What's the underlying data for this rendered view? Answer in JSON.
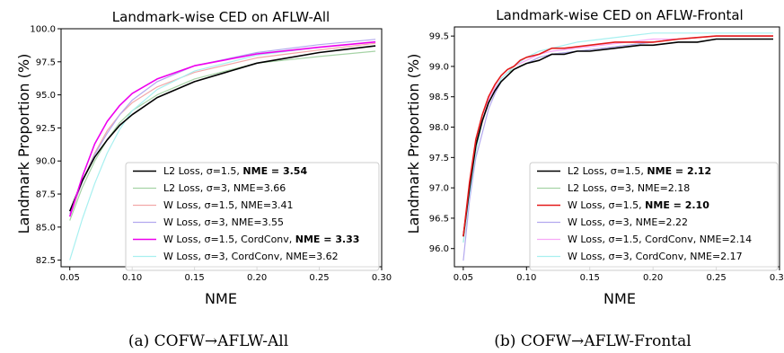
{
  "chart_data": [
    {
      "type": "line",
      "title": "Landmark-wise CED on AFLW-All",
      "xlabel": "NME",
      "ylabel": "Landmark Proportion (%)",
      "xlim": [
        0.043,
        0.3
      ],
      "ylim": [
        82,
        100
      ],
      "xticks": [
        "0.05",
        "0.10",
        "0.15",
        "0.20",
        "0.25",
        "0.30"
      ],
      "yticks": [
        "82.5",
        "85.0",
        "87.5",
        "90.0",
        "92.5",
        "95.0",
        "97.5",
        "100.0"
      ],
      "caption": "(a) COFW→AFLW-All",
      "legend_position": "lower-right",
      "series": [
        {
          "name": "L2 Loss, σ=1.5, NME = 3.54",
          "label_plain": "L2 Loss, σ=1.5, ",
          "label_bold": "NME = 3.54",
          "color": "#000000",
          "width": 1.6,
          "x": [
            0.05,
            0.06,
            0.07,
            0.08,
            0.09,
            0.1,
            0.12,
            0.15,
            0.2,
            0.25,
            0.295
          ],
          "y": [
            86.2,
            88.5,
            90.3,
            91.6,
            92.7,
            93.5,
            94.8,
            96.0,
            97.4,
            98.2,
            98.7
          ]
        },
        {
          "name": "L2 Loss, σ=3, NME=3.66",
          "label_plain": "L2 Loss, σ=3, NME=3.66",
          "label_bold": "",
          "color": "#a6d3a6",
          "width": 1.2,
          "x": [
            0.05,
            0.06,
            0.07,
            0.08,
            0.09,
            0.1,
            0.12,
            0.15,
            0.2,
            0.25,
            0.295
          ],
          "y": [
            85.5,
            88.0,
            90.0,
            91.6,
            92.9,
            93.8,
            95.0,
            96.2,
            97.4,
            97.9,
            98.3
          ]
        },
        {
          "name": "W Loss, σ=1.5, NME=3.41",
          "label_plain": "W Loss, σ=1.5, NME=3.41",
          "label_bold": "",
          "color": "#f2a8a8",
          "width": 1.2,
          "x": [
            0.05,
            0.06,
            0.07,
            0.08,
            0.09,
            0.1,
            0.12,
            0.15,
            0.2,
            0.25,
            0.295
          ],
          "y": [
            85.8,
            88.4,
            90.6,
            92.3,
            93.5,
            94.4,
            95.6,
            96.7,
            97.8,
            98.4,
            98.9
          ]
        },
        {
          "name": "W Loss, σ=3, NME=3.55",
          "label_plain": "W Loss, σ=3, NME=3.55",
          "label_bold": "",
          "color": "#b3a8ee",
          "width": 1.2,
          "x": [
            0.05,
            0.06,
            0.07,
            0.08,
            0.09,
            0.1,
            0.12,
            0.15,
            0.2,
            0.25,
            0.295
          ],
          "y": [
            86.0,
            88.4,
            90.5,
            92.1,
            93.5,
            94.6,
            96.0,
            97.2,
            98.2,
            98.8,
            99.2
          ]
        },
        {
          "name": "W Loss, σ=1.5, CordConv, NME = 3.33",
          "label_plain": "W Loss, σ=1.5, CordConv, ",
          "label_bold": "NME = 3.33",
          "color": "#ee00ee",
          "width": 1.6,
          "x": [
            0.05,
            0.06,
            0.07,
            0.08,
            0.09,
            0.1,
            0.12,
            0.15,
            0.2,
            0.25,
            0.295
          ],
          "y": [
            85.8,
            88.8,
            91.3,
            93.0,
            94.2,
            95.1,
            96.2,
            97.2,
            98.1,
            98.6,
            99.0
          ]
        },
        {
          "name": "W Loss, σ=3, CordConv, NME=3.62",
          "label_plain": "W Loss, σ=3, CordConv, NME=3.62",
          "label_bold": "",
          "color": "#a8f0f0",
          "width": 1.2,
          "x": [
            0.05,
            0.06,
            0.07,
            0.08,
            0.09,
            0.1,
            0.12,
            0.15,
            0.2,
            0.25,
            0.295
          ],
          "y": [
            82.5,
            85.6,
            88.3,
            90.6,
            92.4,
            93.8,
            95.4,
            96.8,
            98.0,
            98.6,
            99.0
          ]
        }
      ]
    },
    {
      "type": "line",
      "title": "Landmark-wise CED on AFLW-Frontal",
      "xlabel": "NME",
      "ylabel": "Landmark Proportion (%)",
      "xlim": [
        0.043,
        0.3
      ],
      "ylim": [
        95.7,
        99.65
      ],
      "xticks": [
        "0.05",
        "0.10",
        "0.15",
        "0.20",
        "0.25",
        "0.30"
      ],
      "yticks": [
        "96.0",
        "96.5",
        "97.0",
        "97.5",
        "98.0",
        "98.5",
        "99.0",
        "99.5"
      ],
      "caption": "(b) COFW→AFLW-Frontal",
      "legend_position": "lower-right",
      "series": [
        {
          "name": "L2 Loss, σ=1.5, NME = 2.12",
          "label_plain": "L2 Loss, σ=1.5, ",
          "label_bold": "NME = 2.12",
          "color": "#000000",
          "width": 1.6,
          "x": [
            0.05,
            0.055,
            0.06,
            0.065,
            0.07,
            0.075,
            0.08,
            0.085,
            0.09,
            0.095,
            0.1,
            0.11,
            0.115,
            0.12,
            0.13,
            0.14,
            0.15,
            0.17,
            0.19,
            0.2,
            0.22,
            0.235,
            0.25,
            0.26,
            0.295
          ],
          "y": [
            96.2,
            97.0,
            97.7,
            98.1,
            98.4,
            98.6,
            98.75,
            98.85,
            98.95,
            99.0,
            99.05,
            99.1,
            99.15,
            99.2,
            99.2,
            99.25,
            99.25,
            99.3,
            99.35,
            99.35,
            99.4,
            99.4,
            99.45,
            99.45,
            99.45
          ]
        },
        {
          "name": "L2 Loss, σ=3, NME=2.18",
          "label_plain": "L2 Loss, σ=3, NME=2.18",
          "label_bold": "",
          "color": "#a6d3a6",
          "width": 1.2,
          "x": [
            0.05,
            0.055,
            0.06,
            0.065,
            0.07,
            0.075,
            0.08,
            0.085,
            0.09,
            0.1,
            0.11,
            0.12,
            0.14,
            0.16,
            0.18,
            0.2,
            0.22,
            0.25,
            0.295
          ],
          "y": [
            96.1,
            96.9,
            97.6,
            98.1,
            98.4,
            98.6,
            98.8,
            98.9,
            98.95,
            99.05,
            99.15,
            99.2,
            99.25,
            99.3,
            99.35,
            99.4,
            99.45,
            99.5,
            99.5
          ]
        },
        {
          "name": "W Loss, σ=1.5, NME = 2.10",
          "label_plain": "W Loss, σ=1.5, ",
          "label_bold": "NME = 2.10",
          "color": "#e41a1a",
          "width": 1.6,
          "x": [
            0.05,
            0.055,
            0.06,
            0.065,
            0.07,
            0.075,
            0.08,
            0.085,
            0.09,
            0.095,
            0.1,
            0.11,
            0.12,
            0.13,
            0.15,
            0.17,
            0.2,
            0.22,
            0.25,
            0.295
          ],
          "y": [
            96.2,
            97.1,
            97.8,
            98.2,
            98.5,
            98.7,
            98.85,
            98.95,
            99.0,
            99.1,
            99.15,
            99.2,
            99.3,
            99.3,
            99.35,
            99.4,
            99.4,
            99.45,
            99.5,
            99.5
          ]
        },
        {
          "name": "W Loss, σ=3, NME=2.22",
          "label_plain": "W Loss, σ=3, NME=2.22",
          "label_bold": "",
          "color": "#b3a8ee",
          "width": 1.2,
          "x": [
            0.05,
            0.055,
            0.06,
            0.065,
            0.07,
            0.075,
            0.08,
            0.085,
            0.09,
            0.1,
            0.11,
            0.12,
            0.14,
            0.16,
            0.18,
            0.2,
            0.22,
            0.25,
            0.295
          ],
          "y": [
            95.8,
            96.8,
            97.5,
            97.9,
            98.3,
            98.55,
            98.75,
            98.85,
            98.95,
            99.05,
            99.15,
            99.2,
            99.25,
            99.3,
            99.35,
            99.4,
            99.45,
            99.5,
            99.5
          ]
        },
        {
          "name": "W Loss, σ=1.5, CordConv, NME=2.14",
          "label_plain": "W Loss, σ=1.5, CordConv, NME=2.14",
          "label_bold": "",
          "color": "#f7a8f7",
          "width": 1.2,
          "x": [
            0.05,
            0.055,
            0.06,
            0.065,
            0.07,
            0.075,
            0.08,
            0.085,
            0.09,
            0.1,
            0.11,
            0.12,
            0.14,
            0.16,
            0.18,
            0.2,
            0.22,
            0.25,
            0.295
          ],
          "y": [
            96.2,
            97.0,
            97.7,
            98.1,
            98.45,
            98.65,
            98.8,
            98.9,
            99.0,
            99.1,
            99.2,
            99.25,
            99.3,
            99.35,
            99.4,
            99.45,
            99.45,
            99.5,
            99.5
          ]
        },
        {
          "name": "W Loss, σ=3, CordConv, NME=2.17",
          "label_plain": "W Loss, σ=3, CordConv, NME=2.17",
          "label_bold": "",
          "color": "#a8f0f0",
          "width": 1.2,
          "x": [
            0.05,
            0.055,
            0.06,
            0.065,
            0.07,
            0.075,
            0.08,
            0.085,
            0.09,
            0.1,
            0.11,
            0.12,
            0.14,
            0.16,
            0.18,
            0.2,
            0.22,
            0.25,
            0.295
          ],
          "y": [
            96.1,
            96.9,
            97.6,
            98.1,
            98.4,
            98.6,
            98.8,
            98.9,
            99.0,
            99.15,
            99.25,
            99.3,
            99.4,
            99.45,
            99.5,
            99.55,
            99.55,
            99.55,
            99.55
          ]
        }
      ]
    }
  ]
}
